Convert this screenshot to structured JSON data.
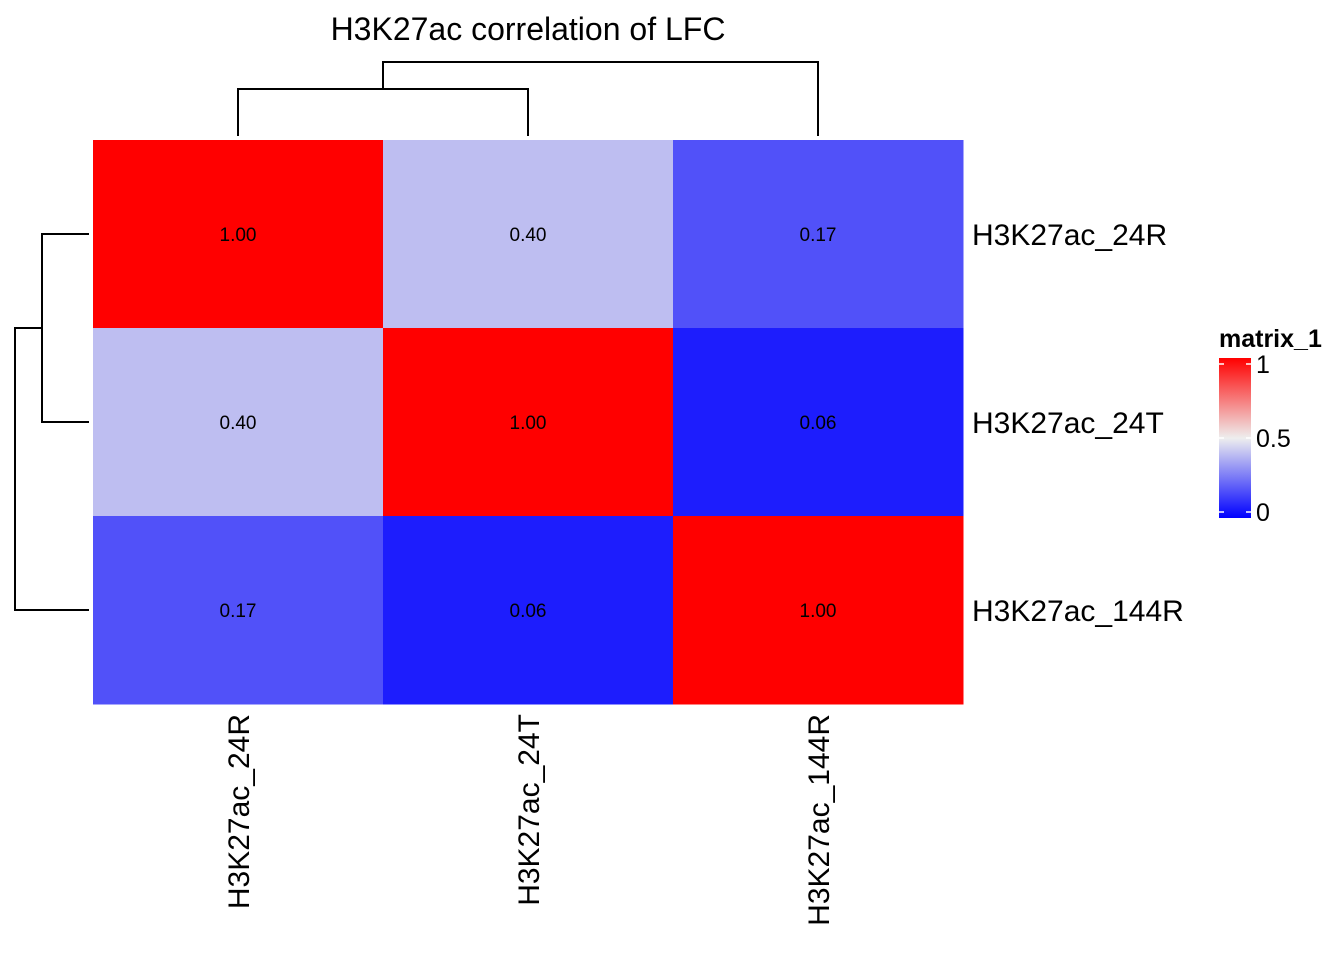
{
  "chart_data": {
    "type": "heatmap",
    "title": "H3K27ac correlation of LFC",
    "rows": [
      "H3K27ac_24R",
      "H3K27ac_24T",
      "H3K27ac_144R"
    ],
    "columns": [
      "H3K27ac_24R",
      "H3K27ac_24T",
      "H3K27ac_144R"
    ],
    "values": [
      [
        1.0,
        0.4,
        0.17
      ],
      [
        0.4,
        1.0,
        0.06
      ],
      [
        0.17,
        0.06,
        1.0
      ]
    ],
    "cell_labels": [
      [
        "1.00",
        "0.40",
        "0.17"
      ],
      [
        "0.40",
        "1.00",
        "0.06"
      ],
      [
        "0.17",
        "0.06",
        "1.00"
      ]
    ],
    "color_scale": {
      "stops": [
        {
          "value": 0,
          "color": "#0000ff"
        },
        {
          "value": 0.5,
          "color": "#eeeeee"
        },
        {
          "value": 1,
          "color": "#ff0000"
        }
      ]
    },
    "legend": {
      "title": "matrix_1",
      "ticks": [
        "1",
        "0.5",
        "0"
      ],
      "position": "right"
    },
    "row_dendrogram": "left",
    "column_dendrogram": "top"
  }
}
